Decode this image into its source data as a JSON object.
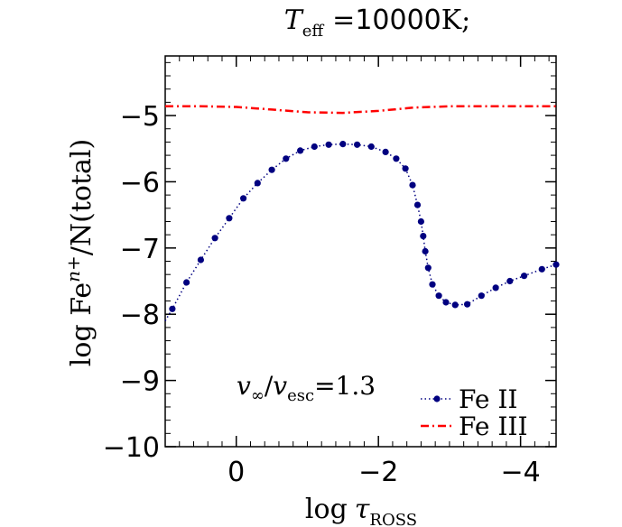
{
  "chart_data": {
    "type": "line",
    "title": {
      "teff_symbol": "T",
      "teff_sub": "eff",
      "equals": "=",
      "value": "10000",
      "unit": "K;"
    },
    "xlabel": {
      "prefix": "log",
      "symbol": "τ",
      "sub": "ROSS"
    },
    "ylabel": {
      "prefix": "log Fe",
      "sup": "n+",
      "suffix": "/N(total)"
    },
    "xlim": [
      1.0,
      -4.5
    ],
    "ylim": [
      -10,
      -4.1
    ],
    "xticks": [
      0,
      -2,
      -4
    ],
    "xtick_labels": [
      "0",
      "−2",
      "−4"
    ],
    "yticks": [
      -5,
      -6,
      -7,
      -8,
      -9,
      -10
    ],
    "ytick_labels": [
      "−5",
      "−6",
      "−7",
      "−8",
      "−9",
      "−10"
    ],
    "annotation": {
      "v1": "v",
      "v1_sub": "∞",
      "slash": "/",
      "v2": "v",
      "v2_sub": "esc",
      "eq": "=1.3"
    },
    "legend_position": "bottom-right",
    "series": [
      {
        "name": "Fe II",
        "color": "#000080",
        "style": "dotted-markers",
        "x": [
          1.0,
          0.9,
          0.7,
          0.5,
          0.3,
          0.1,
          -0.1,
          -0.3,
          -0.5,
          -0.7,
          -0.9,
          -1.1,
          -1.3,
          -1.5,
          -1.7,
          -1.9,
          -2.1,
          -2.25,
          -2.38,
          -2.48,
          -2.55,
          -2.6,
          -2.63,
          -2.66,
          -2.7,
          -2.76,
          -2.85,
          -2.95,
          -3.08,
          -3.25,
          -3.45,
          -3.65,
          -3.85,
          -4.05,
          -4.3,
          -4.5
        ],
        "y": [
          -8.1,
          -7.92,
          -7.52,
          -7.18,
          -6.85,
          -6.55,
          -6.25,
          -6.02,
          -5.82,
          -5.65,
          -5.53,
          -5.47,
          -5.44,
          -5.43,
          -5.44,
          -5.47,
          -5.55,
          -5.65,
          -5.8,
          -6.05,
          -6.35,
          -6.6,
          -6.82,
          -7.05,
          -7.3,
          -7.55,
          -7.72,
          -7.82,
          -7.86,
          -7.85,
          -7.72,
          -7.6,
          -7.5,
          -7.42,
          -7.32,
          -7.25
        ]
      },
      {
        "name": "Fe III",
        "color": "#ff0000",
        "style": "dash-dot",
        "x": [
          1.0,
          0.5,
          0.0,
          -0.5,
          -1.0,
          -1.5,
          -2.0,
          -2.5,
          -3.0,
          -3.5,
          -4.0,
          -4.5
        ],
        "y": [
          -4.86,
          -4.86,
          -4.87,
          -4.91,
          -4.95,
          -4.96,
          -4.93,
          -4.88,
          -4.86,
          -4.86,
          -4.86,
          -4.86
        ]
      }
    ]
  }
}
